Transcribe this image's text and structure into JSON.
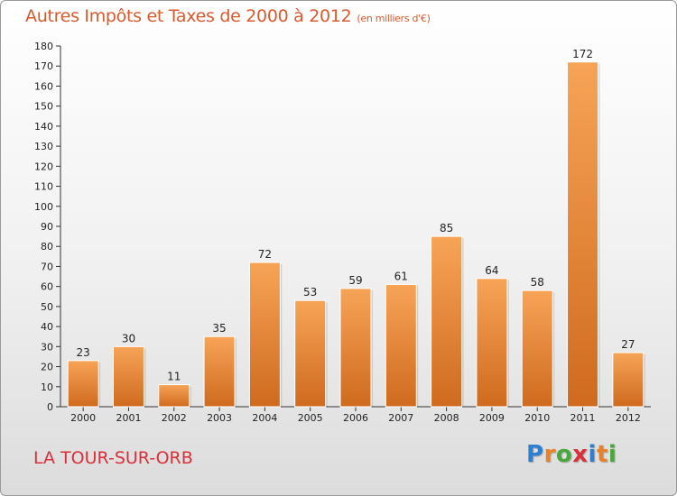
{
  "title": "Autres Impôts et Taxes de 2000 à 2012",
  "title_unit": "(en milliers d'€)",
  "commune": "LA TOUR-SUR-ORB",
  "brand": {
    "letters": [
      "P",
      "r",
      "o",
      "x",
      "i",
      "t",
      "i"
    ],
    "colors": [
      "#2f7fd0",
      "#e8822a",
      "#49a73c",
      "#d9303a",
      "#2f7fd0",
      "#e8822a",
      "#49a73c"
    ]
  },
  "colors": {
    "title": "#d95a2e",
    "bar_light": "#f7a457",
    "bar_dark": "#cf6a1e",
    "commune": "#d9303a"
  },
  "chart_data": {
    "type": "bar",
    "categories": [
      "2000",
      "2001",
      "2002",
      "2003",
      "2004",
      "2005",
      "2006",
      "2007",
      "2008",
      "2009",
      "2010",
      "2011",
      "2012"
    ],
    "values": [
      23,
      30,
      11,
      35,
      72,
      53,
      59,
      61,
      85,
      64,
      58,
      172,
      27
    ],
    "ylim": [
      0,
      180
    ],
    "yticks": [
      0,
      10,
      20,
      30,
      40,
      50,
      60,
      70,
      80,
      90,
      100,
      110,
      120,
      130,
      140,
      150,
      160,
      170,
      180
    ],
    "grid": false,
    "data_labels": true
  }
}
